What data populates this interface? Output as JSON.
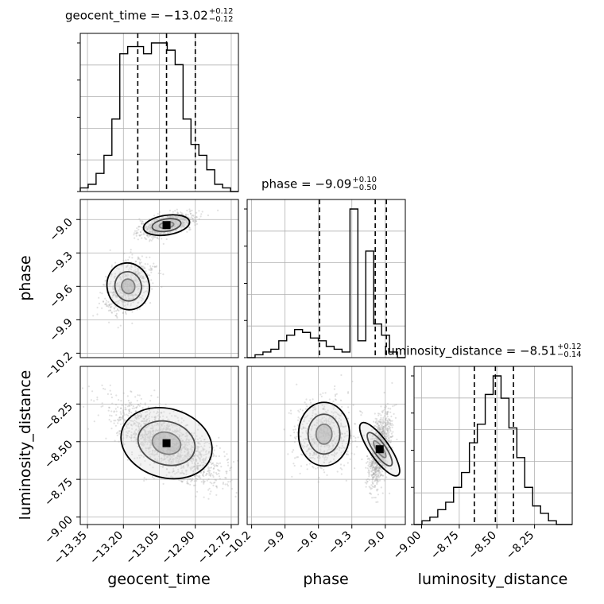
{
  "chart_data": {
    "type": "corner",
    "parameters": [
      "geocent_time",
      "phase",
      "luminosity_distance"
    ],
    "x_labels": [
      "geocent_time",
      "phase",
      "luminosity_distance"
    ],
    "y_labels": [
      "phase",
      "luminosity_distance"
    ],
    "titles": [
      {
        "parameter": "geocent_time",
        "prefix": "geocent_time = ",
        "value": "−13.02",
        "upper": "+0.12",
        "lower": "−0.12"
      },
      {
        "parameter": "phase",
        "prefix": "phase = ",
        "value": "−9.09",
        "upper": "+0.10",
        "lower": "−0.50"
      },
      {
        "parameter": "luminosity_distance",
        "prefix": "luminosity_distance = ",
        "value": "−8.51",
        "upper": "+0.12",
        "lower": "−0.14"
      }
    ],
    "ranges": {
      "geocent_time": [
        -13.38,
        -12.72
      ],
      "phase": [
        -10.24,
        -8.82
      ],
      "luminosity_distance": [
        -9.05,
        -8.0
      ]
    },
    "ticks": {
      "geocent_time": [
        "−13.35",
        "−13.20",
        "−13.05",
        "−12.90",
        "−12.75"
      ],
      "phase": [
        "−10.2",
        "−9.9",
        "−9.6",
        "−9.3",
        "−9.0"
      ],
      "luminosity_distance": [
        "−9.00",
        "−8.75",
        "−8.50",
        "−8.25"
      ]
    },
    "tick_values": {
      "geocent_time": [
        -13.35,
        -13.2,
        -13.05,
        -12.9,
        -12.75
      ],
      "phase": [
        -10.2,
        -9.9,
        -9.6,
        -9.3,
        -9.0
      ],
      "luminosity_distance": [
        -9.0,
        -8.75,
        -8.5,
        -8.25
      ]
    },
    "quantile_lines": {
      "geocent_time": [
        -13.14,
        -13.02,
        -12.9
      ],
      "phase": [
        -9.59,
        -9.09,
        -8.99
      ],
      "luminosity_distance": [
        -8.65,
        -8.51,
        -8.39
      ]
    },
    "histograms": {
      "geocent_time": {
        "edges": [
          -13.38,
          -12.72
        ],
        "counts": [
          1,
          2,
          5,
          10,
          20,
          38,
          40,
          40,
          38,
          41,
          41,
          39,
          35,
          20,
          13,
          10,
          6,
          2,
          1,
          0
        ]
      },
      "phase": {
        "edges": [
          -10.24,
          -8.82
        ],
        "counts": [
          0,
          1,
          2,
          3,
          6,
          8,
          10,
          9,
          7,
          6,
          4,
          3,
          2,
          53,
          6,
          38,
          12,
          8,
          2,
          0
        ]
      },
      "luminosity_distance": {
        "edges": [
          -9.05,
          -8.0
        ],
        "counts": [
          0,
          1,
          2,
          4,
          6,
          10,
          14,
          22,
          27,
          35,
          40,
          34,
          26,
          18,
          10,
          5,
          3,
          1,
          0,
          0
        ]
      }
    },
    "modes_2d": {
      "phase_vs_geocent_time": [
        {
          "x": -13.02,
          "y": -9.05,
          "weight": 0.62
        },
        {
          "x": -13.18,
          "y": -9.6,
          "weight": 0.38
        }
      ],
      "luminosity_distance_vs_geocent_time": [
        {
          "x": -13.02,
          "y": -8.51,
          "weight": 1.0
        }
      ],
      "luminosity_distance_vs_phase": [
        {
          "x": -9.05,
          "y": -8.55,
          "weight": 0.62
        },
        {
          "x": -9.55,
          "y": -8.45,
          "weight": 0.38
        }
      ]
    },
    "grid": true,
    "style": {
      "hist_color": "#000000",
      "quantile_line_color": "#000000",
      "scatter_color": "#aaaaaa",
      "contour_color": "#000000"
    }
  }
}
